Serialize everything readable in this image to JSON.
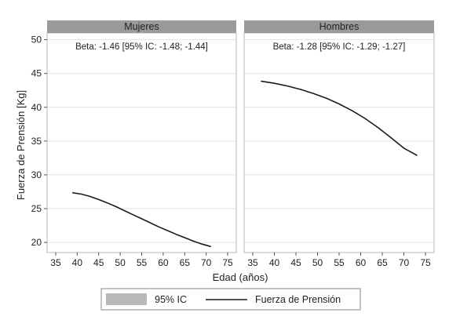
{
  "chart_data": {
    "type": "line",
    "ylabel": "Fuerza de Prensión [Kg]",
    "xlabel": "Edad (años)",
    "xlim": [
      33,
      77
    ],
    "ylim": [
      18.5,
      51
    ],
    "xticks": [
      35,
      40,
      45,
      50,
      55,
      60,
      65,
      70,
      75
    ],
    "yticks": [
      20,
      25,
      30,
      35,
      40,
      45,
      50
    ],
    "grid": true,
    "legend_position": "bottom",
    "legend": {
      "ci_label": "95% IC",
      "line_label": "Fuerza de Prensión"
    },
    "colors": {
      "panel_header": "#9a9a9a",
      "line": "#1a1a1a",
      "ci": "#b8b8b8",
      "grid": "#e2e2e2"
    },
    "panels": [
      {
        "title": "Mujeres",
        "annotation": "Beta: -1.46 [95% IC: -1.48; -1.44]",
        "series": [
          {
            "x": [
              39,
              41,
              43,
              45,
              47,
              49,
              51,
              53,
              55,
              57,
              59,
              61,
              63,
              65,
              67,
              69,
              71
            ],
            "y": [
              27.35,
              27.15,
              26.8,
              26.35,
              25.85,
              25.3,
              24.7,
              24.1,
              23.5,
              22.9,
              22.3,
              21.75,
              21.2,
              20.7,
              20.2,
              19.75,
              19.4
            ]
          }
        ]
      },
      {
        "title": "Hombres",
        "annotation": "Beta: -1.28 [95% IC: -1.29; -1.27]",
        "series": [
          {
            "x": [
              37,
              40,
              43,
              46,
              49,
              52,
              55,
              58,
              61,
              64,
              67,
              70,
              73
            ],
            "y": [
              43.85,
              43.55,
              43.15,
              42.65,
              42.05,
              41.35,
              40.5,
              39.5,
              38.35,
              37.0,
              35.5,
              33.95,
              32.9
            ]
          }
        ]
      }
    ]
  }
}
